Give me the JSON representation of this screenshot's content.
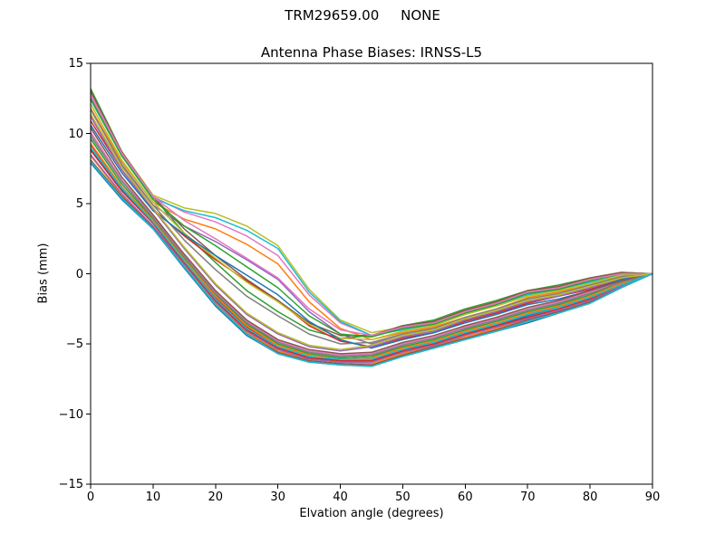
{
  "chart_data": {
    "type": "line",
    "suptitle": "TRM29659.00     NONE",
    "title": "Antenna Phase Biases: IRNSS-L5",
    "xlabel": "Elvation angle (degrees)",
    "ylabel": "Bias (mm)",
    "xlim": [
      0,
      90
    ],
    "ylim": [
      -15,
      15
    ],
    "xticks": [
      0,
      10,
      20,
      30,
      40,
      50,
      60,
      70,
      80,
      90
    ],
    "yticks": [
      -15,
      -10,
      -5,
      0,
      5,
      10,
      15
    ],
    "grid": false,
    "legend": "none",
    "line_width": 1.5,
    "x": [
      0,
      5,
      10,
      15,
      20,
      25,
      30,
      35,
      40,
      45,
      50,
      55,
      60,
      65,
      70,
      75,
      80,
      85,
      90
    ],
    "series": [
      {
        "color": "#1f77b4",
        "values": [
          7.9,
          5.3,
          3.2,
          0.4,
          -2.3,
          -4.4,
          -5.7,
          -6.3,
          -6.5,
          -6.6,
          -5.9,
          -5.3,
          -4.7,
          -4.1,
          -3.5,
          -2.8,
          -2.1,
          -1.0,
          0.0
        ]
      },
      {
        "color": "#ff7f0e",
        "values": [
          8.4,
          5.6,
          3.4,
          0.6,
          -2.1,
          -4.2,
          -5.5,
          -6.1,
          -6.3,
          -6.4,
          -5.7,
          -5.1,
          -4.5,
          -3.9,
          -3.2,
          -2.6,
          -1.9,
          -0.9,
          0.0
        ]
      },
      {
        "color": "#2ca02c",
        "values": [
          13.2,
          8.7,
          5.5,
          2.9,
          0.8,
          -1.2,
          -2.7,
          -4.0,
          -4.6,
          -4.4,
          -3.7,
          -3.3,
          -2.5,
          -1.9,
          -1.2,
          -0.8,
          -0.3,
          0.1,
          0.0
        ]
      },
      {
        "color": "#d62728",
        "values": [
          9.2,
          6.2,
          3.7,
          1.0,
          -1.7,
          -3.8,
          -5.2,
          -5.9,
          -6.1,
          -6.1,
          -5.4,
          -4.8,
          -4.2,
          -3.6,
          -2.9,
          -2.3,
          -1.7,
          -0.7,
          0.0
        ]
      },
      {
        "color": "#9467bd",
        "values": [
          11.3,
          7.7,
          4.9,
          3.4,
          2.3,
          1.0,
          -0.4,
          -2.7,
          -4.3,
          -5.0,
          -4.4,
          -4.0,
          -3.3,
          -2.7,
          -2.0,
          -1.5,
          -0.9,
          -0.3,
          0.0
        ]
      },
      {
        "color": "#8c564b",
        "values": [
          8.1,
          5.5,
          3.3,
          0.5,
          -2.2,
          -4.3,
          -5.6,
          -6.2,
          -6.4,
          -6.5,
          -5.8,
          -5.2,
          -4.6,
          -4.0,
          -3.3,
          -2.7,
          -2.0,
          -0.9,
          0.0
        ]
      },
      {
        "color": "#e377c2",
        "values": [
          12.6,
          8.5,
          5.5,
          4.4,
          3.7,
          2.7,
          1.3,
          -1.5,
          -3.5,
          -4.4,
          -3.9,
          -3.5,
          -2.7,
          -2.1,
          -1.4,
          -1.0,
          -0.5,
          0.0,
          0.0
        ]
      },
      {
        "color": "#7f7f7f",
        "values": [
          10.0,
          6.7,
          4.1,
          1.3,
          -1.3,
          -3.4,
          -4.8,
          -5.6,
          -5.9,
          -5.7,
          -5.0,
          -4.5,
          -3.8,
          -3.2,
          -2.5,
          -2.0,
          -1.4,
          -0.6,
          0.0
        ]
      },
      {
        "color": "#bcbd22",
        "values": [
          12.9,
          8.7,
          5.6,
          4.7,
          4.3,
          3.4,
          2.0,
          -1.1,
          -3.3,
          -4.2,
          -3.8,
          -3.4,
          -2.6,
          -2.0,
          -1.3,
          -0.9,
          -0.4,
          0.1,
          0.0
        ]
      },
      {
        "color": "#17becf",
        "values": [
          12.4,
          8.4,
          5.4,
          4.5,
          4.0,
          3.1,
          1.8,
          -1.3,
          -3.4,
          -4.4,
          -4.0,
          -3.6,
          -2.8,
          -2.2,
          -1.5,
          -1.1,
          -0.6,
          -0.1,
          0.0
        ]
      },
      {
        "color": "#1f77b4",
        "values": [
          8.9,
          6.0,
          3.6,
          0.8,
          -1.8,
          -3.9,
          -5.3,
          -5.9,
          -6.2,
          -6.2,
          -5.5,
          -4.9,
          -4.3,
          -3.7,
          -3.0,
          -2.4,
          -1.7,
          -0.8,
          0.0
        ]
      },
      {
        "color": "#ff7f0e",
        "values": [
          11.8,
          8.0,
          5.1,
          3.9,
          3.2,
          2.1,
          0.7,
          -2.0,
          -3.9,
          -4.7,
          -4.2,
          -3.8,
          -3.1,
          -2.5,
          -1.7,
          -1.3,
          -0.8,
          -0.2,
          0.0
        ]
      },
      {
        "color": "#2ca02c",
        "values": [
          9.6,
          6.4,
          3.9,
          1.1,
          -1.5,
          -3.6,
          -5.0,
          -5.7,
          -6.0,
          -5.9,
          -5.2,
          -4.7,
          -4.0,
          -3.4,
          -2.7,
          -2.2,
          -1.5,
          -0.6,
          0.0
        ]
      },
      {
        "color": "#d62728",
        "values": [
          10.9,
          7.4,
          4.6,
          2.7,
          1.0,
          -0.5,
          -1.9,
          -3.7,
          -4.8,
          -5.2,
          -4.6,
          -4.2,
          -3.4,
          -2.8,
          -2.1,
          -1.6,
          -1.1,
          -0.4,
          0.0
        ]
      },
      {
        "color": "#9467bd",
        "values": [
          8.5,
          5.7,
          3.4,
          0.7,
          -2.0,
          -4.1,
          -5.4,
          -6.1,
          -6.3,
          -6.3,
          -5.6,
          -5.1,
          -4.4,
          -3.8,
          -3.2,
          -2.6,
          -1.9,
          -0.9,
          0.0
        ]
      },
      {
        "color": "#8c564b",
        "values": [
          13.0,
          8.7,
          5.5,
          3.2,
          1.3,
          -0.4,
          -1.9,
          -3.5,
          -4.4,
          -4.4,
          -3.7,
          -3.4,
          -2.6,
          -2.0,
          -1.2,
          -0.9,
          -0.3,
          0.1,
          0.0
        ]
      },
      {
        "color": "#e377c2",
        "values": [
          10.1,
          6.7,
          4.1,
          1.3,
          -1.3,
          -3.4,
          -4.8,
          -5.5,
          -5.8,
          -5.7,
          -5.0,
          -4.5,
          -3.8,
          -3.2,
          -2.5,
          -2.0,
          -1.3,
          -0.5,
          0.0
        ]
      },
      {
        "color": "#7f7f7f",
        "values": [
          11.7,
          7.8,
          4.9,
          2.4,
          0.3,
          -1.6,
          -3.0,
          -4.3,
          -5.0,
          -4.9,
          -4.3,
          -3.9,
          -3.1,
          -2.5,
          -1.8,
          -1.4,
          -0.8,
          -0.2,
          0.0
        ]
      },
      {
        "color": "#bcbd22",
        "values": [
          12.1,
          8.1,
          5.1,
          2.9,
          1.1,
          -0.6,
          -2.0,
          -3.6,
          -4.6,
          -4.7,
          -4.1,
          -3.7,
          -2.9,
          -2.3,
          -1.6,
          -1.2,
          -0.7,
          -0.1,
          0.0
        ]
      },
      {
        "color": "#17becf",
        "values": [
          8.0,
          5.4,
          3.2,
          0.5,
          -2.2,
          -4.3,
          -5.7,
          -6.3,
          -6.5,
          -6.6,
          -5.9,
          -5.3,
          -4.7,
          -4.1,
          -3.4,
          -2.8,
          -2.1,
          -1.0,
          0.0
        ]
      },
      {
        "color": "#1f77b4",
        "values": [
          10.6,
          7.2,
          4.5,
          2.8,
          1.3,
          -0.1,
          -1.5,
          -3.4,
          -4.7,
          -5.3,
          -4.7,
          -4.2,
          -3.5,
          -2.9,
          -2.2,
          -1.8,
          -1.2,
          -0.4,
          0.0
        ]
      },
      {
        "color": "#ff7f0e",
        "values": [
          9.3,
          6.2,
          3.8,
          1.0,
          -1.6,
          -3.7,
          -5.1,
          -5.8,
          -6.1,
          -6.0,
          -5.3,
          -4.8,
          -4.1,
          -3.5,
          -2.8,
          -2.3,
          -1.6,
          -0.7,
          0.0
        ]
      },
      {
        "color": "#2ca02c",
        "values": [
          12.5,
          8.4,
          5.3,
          3.4,
          2.0,
          0.5,
          -1.0,
          -3.0,
          -4.3,
          -4.5,
          -3.9,
          -3.6,
          -2.8,
          -2.2,
          -1.4,
          -1.1,
          -0.5,
          0.0,
          0.0
        ]
      },
      {
        "color": "#d62728",
        "values": [
          8.8,
          5.9,
          3.6,
          0.8,
          -1.9,
          -4.0,
          -5.3,
          -6.0,
          -6.2,
          -6.2,
          -5.5,
          -5.0,
          -4.3,
          -3.7,
          -3.1,
          -2.5,
          -1.8,
          -0.8,
          0.0
        ]
      },
      {
        "color": "#9467bd",
        "values": [
          11.2,
          7.4,
          4.6,
          1.8,
          -0.8,
          -2.9,
          -4.3,
          -5.2,
          -5.5,
          -5.2,
          -4.5,
          -4.1,
          -3.3,
          -2.7,
          -2.0,
          -1.6,
          -1.0,
          -0.3,
          0.0
        ]
      },
      {
        "color": "#8c564b",
        "values": [
          10.4,
          6.9,
          4.2,
          1.4,
          -1.2,
          -3.3,
          -4.7,
          -5.4,
          -5.7,
          -5.6,
          -4.9,
          -4.4,
          -3.7,
          -3.1,
          -2.4,
          -1.9,
          -1.2,
          -0.5,
          0.0
        ]
      },
      {
        "color": "#e377c2",
        "values": [
          12.8,
          8.6,
          5.5,
          3.8,
          2.5,
          1.1,
          -0.3,
          -2.5,
          -4.0,
          -4.4,
          -3.8,
          -3.5,
          -2.7,
          -2.1,
          -1.3,
          -1.0,
          -0.4,
          0.0,
          0.0
        ]
      },
      {
        "color": "#7f7f7f",
        "values": [
          9.8,
          6.6,
          4.0,
          1.2,
          -1.4,
          -3.5,
          -4.9,
          -5.6,
          -5.9,
          -5.8,
          -5.1,
          -4.6,
          -3.9,
          -3.3,
          -2.6,
          -2.1,
          -1.4,
          -0.6,
          0.0
        ]
      },
      {
        "color": "#bcbd22",
        "values": [
          11.4,
          7.6,
          4.7,
          1.9,
          -0.7,
          -2.8,
          -4.2,
          -5.1,
          -5.4,
          -5.1,
          -4.4,
          -4.0,
          -3.2,
          -2.6,
          -1.9,
          -1.5,
          -0.9,
          -0.3,
          0.0
        ]
      },
      {
        "color": "#17becf",
        "values": [
          9.0,
          6.1,
          3.7,
          0.9,
          -1.8,
          -3.9,
          -5.2,
          -5.9,
          -6.1,
          -6.1,
          -5.4,
          -4.9,
          -4.2,
          -3.6,
          -2.9,
          -2.4,
          -1.7,
          -0.8,
          0.0
        ]
      }
    ],
    "axis_color": "#000000",
    "background_color": "#ffffff"
  }
}
